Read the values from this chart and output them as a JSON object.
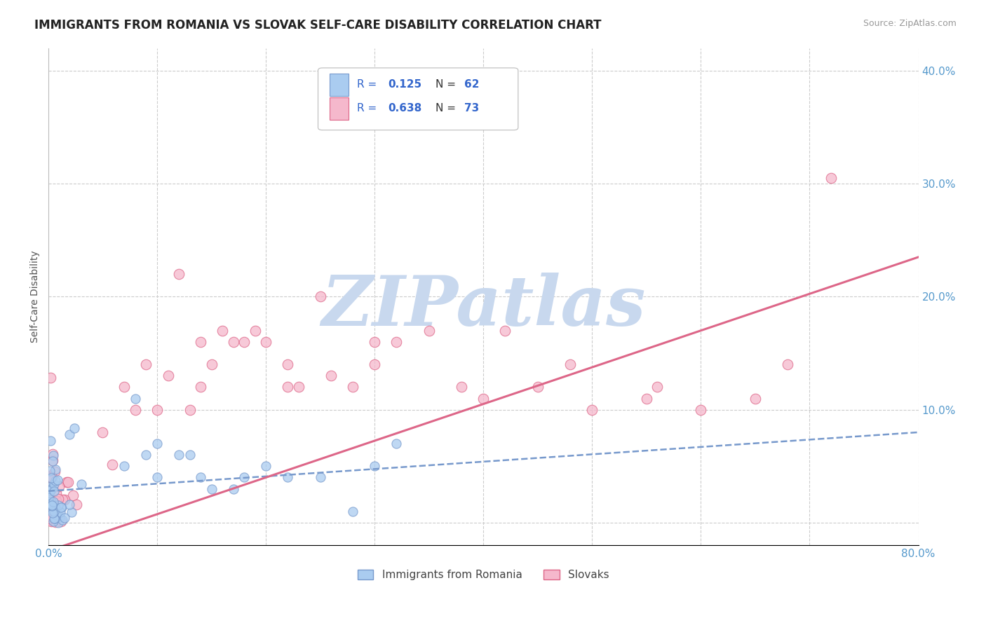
{
  "title": "IMMIGRANTS FROM ROMANIA VS SLOVAK SELF-CARE DISABILITY CORRELATION CHART",
  "source": "Source: ZipAtlas.com",
  "ylabel": "Self-Care Disability",
  "xlim": [
    0.0,
    0.8
  ],
  "ylim": [
    -0.02,
    0.42
  ],
  "xticks": [
    0.0,
    0.1,
    0.2,
    0.3,
    0.4,
    0.5,
    0.6,
    0.7,
    0.8
  ],
  "yticks": [
    0.0,
    0.1,
    0.2,
    0.3,
    0.4
  ],
  "grid_color": "#cccccc",
  "background_color": "#ffffff",
  "watermark": "ZIPatlas",
  "watermark_color": "#c8d8ee",
  "series1_label": "Immigrants from Romania",
  "series1_color": "#aaccf0",
  "series1_edge_color": "#7799cc",
  "series1_R": 0.125,
  "series1_N": 62,
  "series2_label": "Slovaks",
  "series2_color": "#f5b8cc",
  "series2_edge_color": "#dd6688",
  "series2_R": 0.638,
  "series2_N": 73,
  "title_color": "#222222",
  "title_fontsize": 12,
  "axis_color": "#5599cc",
  "tick_fontsize": 11,
  "ylabel_fontsize": 10
}
